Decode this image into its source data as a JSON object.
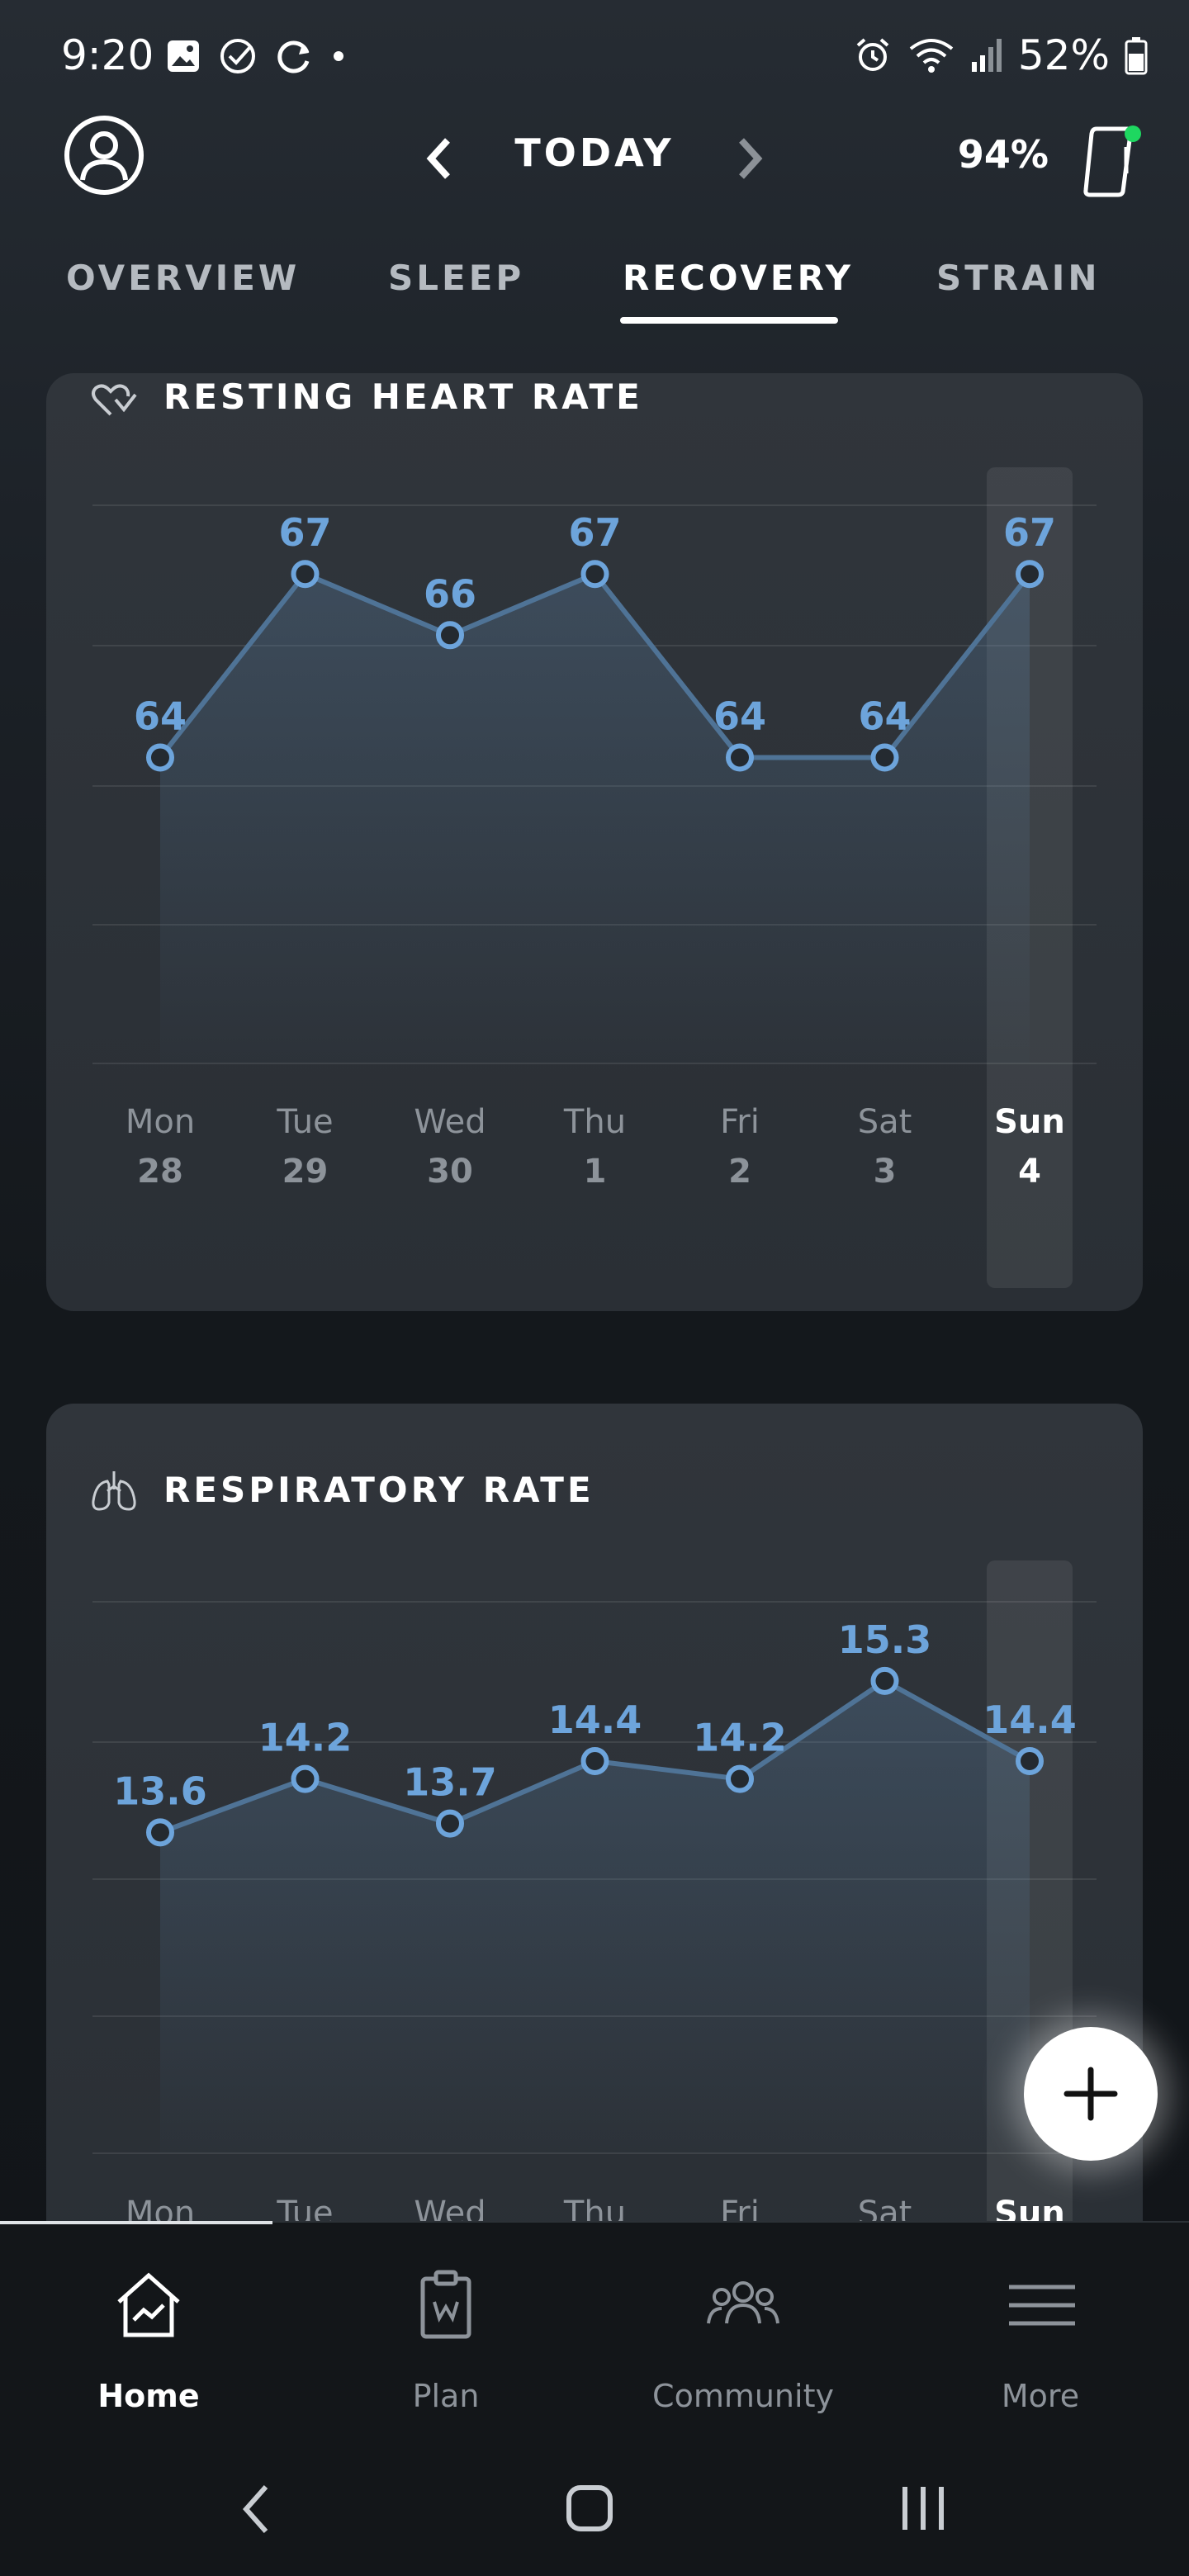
{
  "status_bar": {
    "time": "9:20",
    "battery_text": "52%"
  },
  "header": {
    "date_label": "TODAY",
    "device_battery": "94%",
    "colors": {
      "device_status": "#1ed760"
    }
  },
  "tabs": [
    {
      "label": "OVERVIEW"
    },
    {
      "label": "SLEEP"
    },
    {
      "label": "RECOVERY",
      "active": true
    },
    {
      "label": "STRAIN"
    }
  ],
  "cards": {
    "rhr": {
      "title": "RESTING HEART RATE",
      "icon": "heart-rate-icon"
    },
    "resp": {
      "title": "RESPIRATORY RATE",
      "icon": "lungs-icon"
    }
  },
  "chart_data": [
    {
      "type": "line",
      "title": "RESTING HEART RATE",
      "categories": [
        "Mon 28",
        "Tue 29",
        "Wed 30",
        "Thu 1",
        "Fri 2",
        "Sat 3",
        "Sun 4"
      ],
      "x_days": [
        "Mon",
        "Tue",
        "Wed",
        "Thu",
        "Fri",
        "Sat",
        "Sun"
      ],
      "x_dates": [
        "28",
        "29",
        "30",
        "1",
        "2",
        "3",
        "4"
      ],
      "values": [
        64,
        67,
        66,
        67,
        64,
        64,
        67
      ],
      "labels": [
        "64",
        "67",
        "66",
        "67",
        "64",
        "64",
        "67"
      ],
      "ylim": [
        59,
        69
      ],
      "grid": true,
      "highlight_index": 6
    },
    {
      "type": "line",
      "title": "RESPIRATORY RATE",
      "categories": [
        "Mon",
        "Tue",
        "Wed",
        "Thu",
        "Fri",
        "Sat",
        "Sun"
      ],
      "x_days": [
        "Mon",
        "Tue",
        "Wed",
        "Thu",
        "Fri",
        "Sat",
        "Sun"
      ],
      "values": [
        13.6,
        14.2,
        13.7,
        14.4,
        14.2,
        15.3,
        14.4
      ],
      "labels": [
        "13.6",
        "14.2",
        "13.7",
        "14.4",
        "14.2",
        "15.3",
        "14.4"
      ],
      "ylim": [
        10,
        17.8
      ],
      "grid": true,
      "highlight_index": 6
    }
  ],
  "bottom_nav": [
    {
      "label": "Home",
      "icon": "home-chart-icon",
      "active": true
    },
    {
      "label": "Plan",
      "icon": "clipboard-icon"
    },
    {
      "label": "Community",
      "icon": "people-icon"
    },
    {
      "label": "More",
      "icon": "menu-icon"
    }
  ],
  "colors": {
    "accent": "#6da4db",
    "line": "#4f7396",
    "fab": "#ffffff"
  }
}
